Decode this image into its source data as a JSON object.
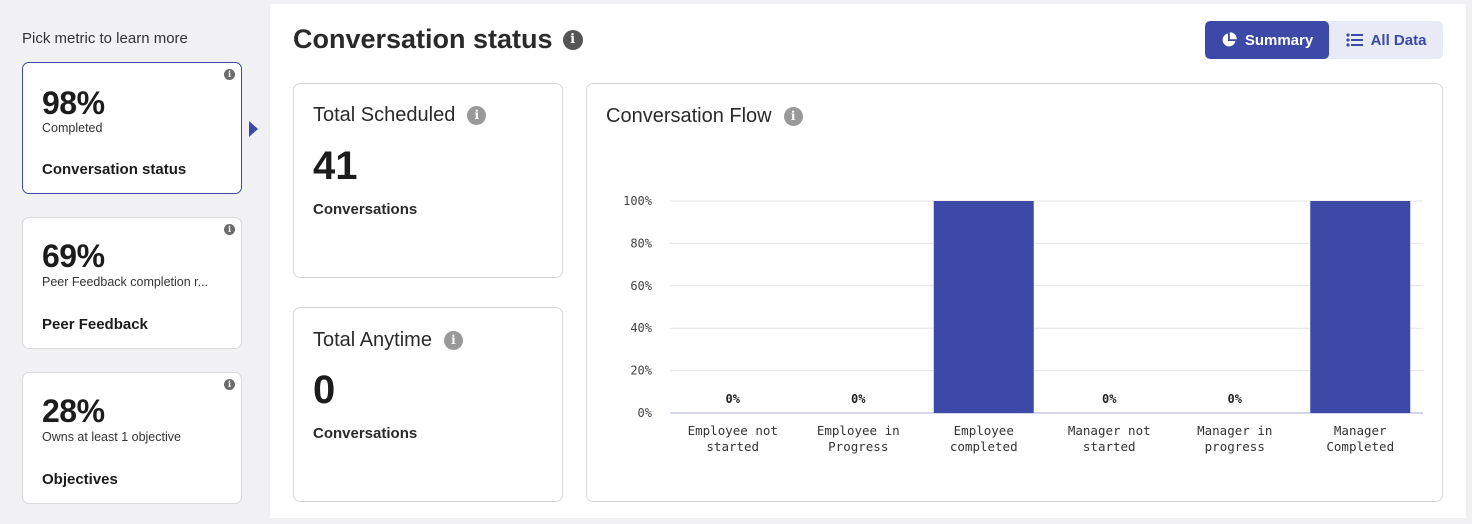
{
  "sidebar": {
    "title": "Pick metric to learn more",
    "metrics": [
      {
        "value": "98%",
        "subtitle": "Completed",
        "name": "Conversation status",
        "active": true
      },
      {
        "value": "69%",
        "subtitle": "Peer Feedback completion r...",
        "name": "Peer Feedback",
        "active": false
      },
      {
        "value": "28%",
        "subtitle": "Owns at least 1 objective",
        "name": "Objectives",
        "active": false
      }
    ]
  },
  "main": {
    "title": "Conversation status",
    "toggle": {
      "summary_label": "Summary",
      "alldata_label": "All Data",
      "selected": "Summary"
    },
    "cards": {
      "scheduled": {
        "title": "Total Scheduled",
        "value": "41",
        "unit": "Conversations"
      },
      "anytime": {
        "title": "Total Anytime",
        "value": "0",
        "unit": "Conversations"
      }
    }
  },
  "colors": {
    "accent": "#3c49a6",
    "toggle_bg": "#e8eaf6",
    "grid": "#e4e4e4"
  },
  "icons": [
    "info-icon",
    "pie-chart-icon",
    "list-icon",
    "caret-right-icon"
  ],
  "chart_data": {
    "type": "bar",
    "title": "Conversation Flow",
    "categories": [
      [
        "Employee not",
        "started"
      ],
      [
        "Employee in",
        "Progress"
      ],
      [
        "Employee",
        "completed"
      ],
      [
        "Manager not",
        "started"
      ],
      [
        "Manager in",
        "progress"
      ],
      [
        "Manager",
        "Completed"
      ]
    ],
    "values": [
      0,
      0,
      100,
      0,
      0,
      100
    ],
    "data_labels": [
      "0%",
      "0%",
      "",
      "0%",
      "0%",
      ""
    ],
    "y_ticks": [
      "0%",
      "20%",
      "40%",
      "60%",
      "80%",
      "100%"
    ],
    "ylim": [
      0,
      100
    ],
    "grid": true,
    "bar_color": "#3c49a6"
  }
}
